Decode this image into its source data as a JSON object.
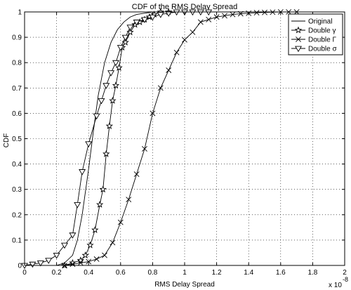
{
  "chart_data": {
    "type": "line",
    "title": "CDF of the RMS Delay Spread",
    "xlabel": "RMS Delay Spread",
    "ylabel": "CDF",
    "x_multiplier_label": "x 10",
    "x_multiplier_exponent": "-8",
    "xlim": [
      0,
      2
    ],
    "ylim": [
      0,
      1
    ],
    "xticks": [
      0,
      0.2,
      0.4,
      0.6,
      0.8,
      1,
      1.2,
      1.4,
      1.6,
      1.8,
      2
    ],
    "xtick_labels": [
      "0",
      "0.2",
      "0.4",
      "0.6",
      "0.8",
      "1",
      "1.2",
      "1.4",
      "1.6",
      "1.8",
      "2"
    ],
    "yticks": [
      0,
      0.1,
      0.2,
      0.3,
      0.4,
      0.5,
      0.6,
      0.7,
      0.8,
      0.9,
      1
    ],
    "ytick_labels": [
      "0",
      "0.1",
      "0.2",
      "0.3",
      "0.4",
      "0.5",
      "0.6",
      "0.7",
      "0.8",
      "0.9",
      "1"
    ],
    "grid": true,
    "legend_position": "top-right",
    "series": [
      {
        "name": "Original",
        "marker": "none",
        "x": [
          0.2,
          0.25,
          0.3,
          0.33,
          0.36,
          0.4,
          0.43,
          0.46,
          0.5,
          0.54,
          0.58,
          0.62,
          0.66,
          0.7,
          0.75,
          0.8,
          0.85
        ],
        "y": [
          0.0,
          0.01,
          0.04,
          0.1,
          0.2,
          0.38,
          0.53,
          0.67,
          0.8,
          0.88,
          0.93,
          0.96,
          0.98,
          0.99,
          0.995,
          1.0,
          1.0
        ]
      },
      {
        "name": "Double γ",
        "marker": "star",
        "x": [
          0.25,
          0.3,
          0.35,
          0.38,
          0.41,
          0.44,
          0.47,
          0.49,
          0.51,
          0.53,
          0.55,
          0.57,
          0.59,
          0.61,
          0.63,
          0.66,
          0.69,
          0.72,
          0.75,
          0.78,
          0.81,
          0.85,
          0.9
        ],
        "y": [
          0.0,
          0.01,
          0.02,
          0.04,
          0.08,
          0.14,
          0.24,
          0.3,
          0.44,
          0.55,
          0.65,
          0.71,
          0.78,
          0.86,
          0.88,
          0.92,
          0.95,
          0.96,
          0.97,
          0.98,
          0.99,
          1.0,
          1.0
        ]
      },
      {
        "name": "Double Γ",
        "marker": "x",
        "x": [
          0.25,
          0.3,
          0.35,
          0.4,
          0.45,
          0.5,
          0.55,
          0.6,
          0.65,
          0.7,
          0.75,
          0.8,
          0.85,
          0.9,
          0.95,
          1.0,
          1.05,
          1.1,
          1.15,
          1.2,
          1.25,
          1.3,
          1.35,
          1.4,
          1.45,
          1.5,
          1.55,
          1.6,
          1.65,
          1.7
        ],
        "y": [
          0.0,
          0.005,
          0.01,
          0.015,
          0.025,
          0.04,
          0.09,
          0.17,
          0.26,
          0.36,
          0.46,
          0.6,
          0.7,
          0.77,
          0.84,
          0.89,
          0.92,
          0.96,
          0.97,
          0.98,
          0.985,
          0.99,
          0.993,
          0.995,
          0.997,
          0.998,
          0.999,
          1.0,
          1.0,
          1.0
        ]
      },
      {
        "name": "Double σ",
        "marker": "triangle-down",
        "x": [
          0.0,
          0.05,
          0.1,
          0.15,
          0.2,
          0.25,
          0.3,
          0.33,
          0.36,
          0.4,
          0.45,
          0.48,
          0.51,
          0.54,
          0.57,
          0.6,
          0.63,
          0.66,
          0.7,
          0.75,
          0.8,
          0.85,
          0.9,
          0.95,
          1.0,
          1.05,
          1.1,
          1.15
        ],
        "y": [
          0.0,
          0.005,
          0.01,
          0.02,
          0.04,
          0.08,
          0.12,
          0.24,
          0.37,
          0.48,
          0.59,
          0.65,
          0.71,
          0.76,
          0.8,
          0.86,
          0.9,
          0.94,
          0.96,
          0.97,
          0.98,
          0.99,
          0.995,
          1.0,
          1.0,
          1.0,
          1.0,
          1.0
        ]
      }
    ]
  }
}
